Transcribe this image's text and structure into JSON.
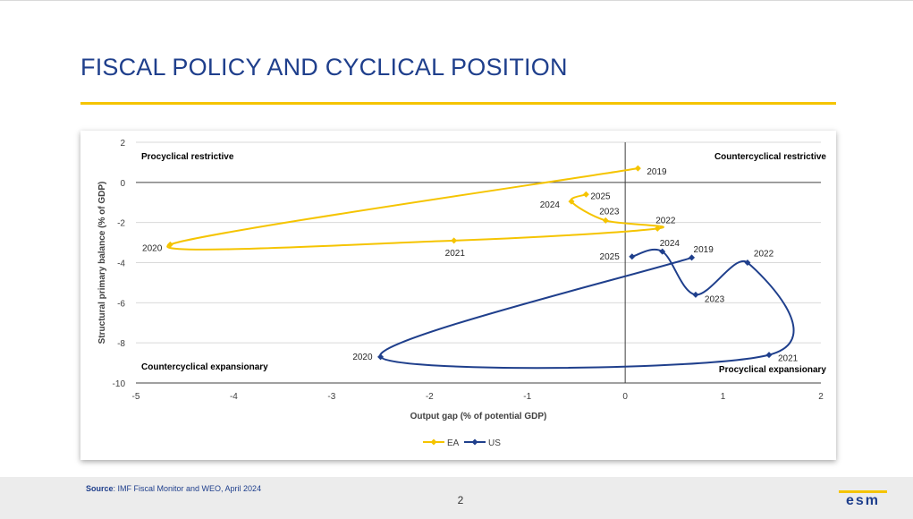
{
  "page": {
    "title": "FISCAL POLICY AND CYCLICAL POSITION",
    "source_label": "Source",
    "source_text": ": IMF Fiscal Monitor and WEO, April 2024",
    "page_number": "2",
    "logo_text": "esm"
  },
  "colors": {
    "ea": "#f5c400",
    "us": "#1f3f8c",
    "title": "#1f3f8c",
    "accent": "#f5c400"
  },
  "chart_data": {
    "type": "scatter",
    "xlabel": "Output gap (% of potential GDP)",
    "ylabel": "Structural primary balance (% of GDP)",
    "xlim": [
      -5,
      2
    ],
    "ylim": [
      -10,
      2
    ],
    "xticks": [
      -5,
      -4,
      -3,
      -2,
      -1,
      0,
      1,
      2
    ],
    "yticks": [
      -10,
      -8,
      -6,
      -4,
      -2,
      0,
      2
    ],
    "grid": "horizontal",
    "legend": "bottom",
    "quadrant_labels": {
      "top_left": "Procyclical restrictive",
      "top_right": "Countercyclical restrictive",
      "bottom_left": "Countercyclical expansionary",
      "bottom_right": "Procyclical expansionary"
    },
    "series": [
      {
        "name": "EA",
        "color": "#f5c400",
        "points": [
          {
            "label": "2019",
            "x": 0.13,
            "y": 0.7
          },
          {
            "label": "2020",
            "x": -4.65,
            "y": -3.1
          },
          {
            "label": "2021",
            "x": -1.75,
            "y": -2.9
          },
          {
            "label": "2022",
            "x": 0.33,
            "y": -2.3
          },
          {
            "label": "2023",
            "x": -0.2,
            "y": -1.9
          },
          {
            "label": "2024",
            "x": -0.55,
            "y": -0.95
          },
          {
            "label": "2025",
            "x": -0.4,
            "y": -0.6
          }
        ]
      },
      {
        "name": "US",
        "color": "#1f3f8c",
        "points": [
          {
            "label": "2019",
            "x": 0.68,
            "y": -3.75
          },
          {
            "label": "2020",
            "x": -2.5,
            "y": -8.7
          },
          {
            "label": "2021",
            "x": 1.47,
            "y": -8.6
          },
          {
            "label": "2022",
            "x": 1.25,
            "y": -4.0
          },
          {
            "label": "2023",
            "x": 0.72,
            "y": -5.6
          },
          {
            "label": "2024",
            "x": 0.38,
            "y": -3.45
          },
          {
            "label": "2025",
            "x": 0.07,
            "y": -3.7
          }
        ]
      }
    ]
  }
}
